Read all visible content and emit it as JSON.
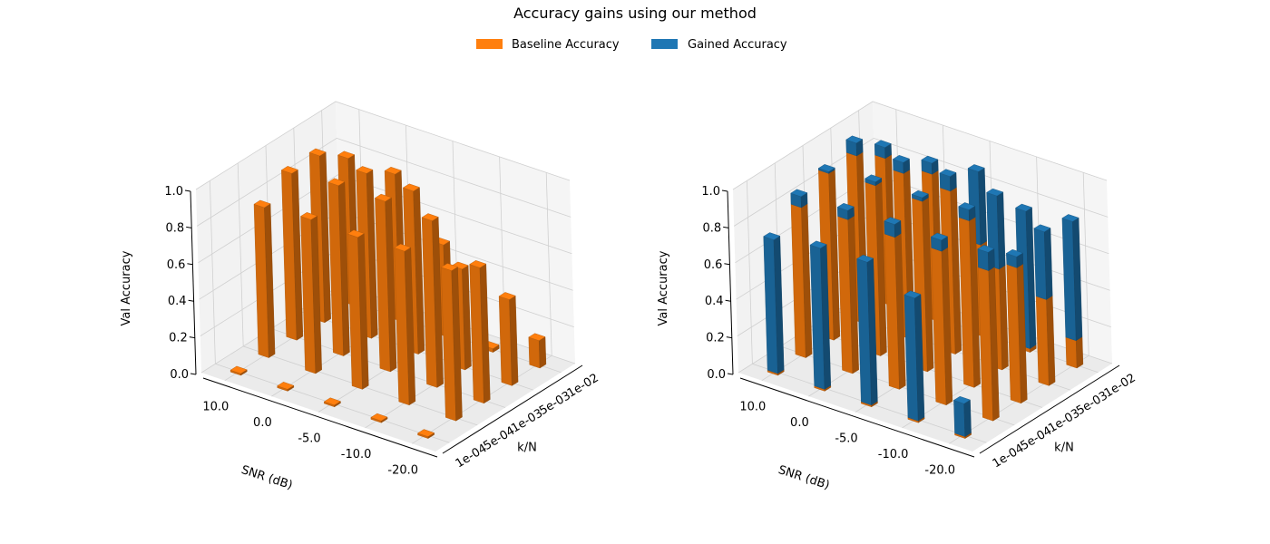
{
  "figure": {
    "title": "Accuracy gains using our method",
    "legend": [
      {
        "label": "Baseline Accuracy",
        "color": "#ff7f0e"
      },
      {
        "label": "Gained Accuracy",
        "color": "#1f77b4"
      }
    ]
  },
  "chart_data": [
    {
      "type": "bar3d",
      "title": "",
      "xlabel": "SNR (dB)",
      "ylabel": "k/N",
      "zlabel": "Val Accuracy",
      "x_ticks": [
        "10.0",
        "0.0",
        "-5.0",
        "-10.0",
        "-20.0"
      ],
      "y_ticks": [
        "1e-04",
        "5e-04",
        "1e-03",
        "5e-03",
        "1e-02"
      ],
      "z_ticks": [
        "0.0",
        "0.2",
        "0.4",
        "0.6",
        "0.8",
        "1.0"
      ],
      "zlim": [
        0,
        1
      ],
      "series": [
        {
          "name": "Baseline Accuracy",
          "color": "#ff7f0e",
          "values": [
            [
              0.01,
              0.82,
              0.91,
              0.91,
              0.8
            ],
            [
              0.01,
              0.84,
              0.93,
              0.9,
              0.8
            ],
            [
              0.01,
              0.83,
              0.93,
              0.89,
              0.5
            ],
            [
              0.01,
              0.84,
              0.91,
              0.55,
              0.02
            ],
            [
              0.01,
              0.82,
              0.74,
              0.47,
              0.15
            ]
          ]
        }
      ]
    },
    {
      "type": "bar3d",
      "title": "",
      "xlabel": "SNR (dB)",
      "ylabel": "k/N",
      "zlabel": "Val Accuracy",
      "x_ticks": [
        "10.0",
        "0.0",
        "-5.0",
        "-10.0",
        "-20.0"
      ],
      "y_ticks": [
        "1e-04",
        "5e-04",
        "1e-03",
        "5e-03",
        "1e-02"
      ],
      "z_ticks": [
        "0.0",
        "0.2",
        "0.4",
        "0.6",
        "0.8",
        "1.0"
      ],
      "zlim": [
        0,
        1
      ],
      "series": [
        {
          "name": "Baseline Accuracy",
          "color": "#ff7f0e",
          "values": [
            [
              0.01,
              0.82,
              0.91,
              0.91,
              0.8
            ],
            [
              0.01,
              0.84,
              0.93,
              0.9,
              0.8
            ],
            [
              0.01,
              0.83,
              0.93,
              0.89,
              0.5
            ],
            [
              0.01,
              0.84,
              0.91,
              0.55,
              0.02
            ],
            [
              0.01,
              0.82,
              0.74,
              0.47,
              0.15
            ]
          ]
        },
        {
          "name": "Gained Accuracy",
          "color": "#1f77b4",
          "values": [
            [
              0.73,
              0.06,
              0.01,
              0.07,
              0.06
            ],
            [
              0.77,
              0.05,
              0.02,
              0.06,
              0.06
            ],
            [
              0.78,
              0.07,
              0.02,
              0.08,
              0.4
            ],
            [
              0.67,
              0.06,
              0.06,
              0.4,
              0.75
            ],
            [
              0.18,
              0.1,
              0.06,
              0.37,
              0.65
            ]
          ]
        }
      ]
    }
  ]
}
